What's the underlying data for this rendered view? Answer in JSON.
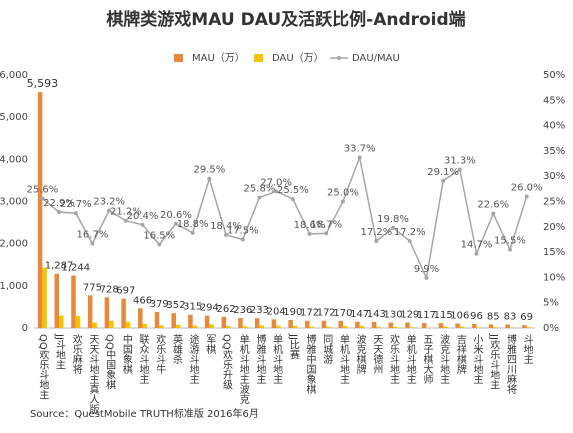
{
  "chart_data": {
    "type": "bar_line",
    "title": "棋牌类游戏MAU DAU及活跃比例-Android端",
    "source": "Source：QuestMobile TRUTH标准版 2016年6月",
    "categories": [
      "QQ欢乐斗地主",
      "JJ斗地主",
      "欢乐麻将",
      "天天斗地主真人版",
      "QQ中国象棋",
      "中国象棋",
      "联众斗地主",
      "欢乐斗牛",
      "英雄杀",
      "途游斗地主",
      "军棋",
      "QQ欢乐升级",
      "单机斗地主波克",
      "博雅斗地主",
      "单机斗地主",
      "JJ比赛",
      "博雅中国象棋",
      "同城游",
      "单机斗地主",
      "波克棋牌",
      "天天德州",
      "欢乐斗地主",
      "单机斗地主",
      "五子棋大师",
      "波克斗地主",
      "吉祥棋牌",
      "小米斗地主",
      "JJ欢乐斗地主",
      "博雅四川麻将",
      "斗地主"
    ],
    "series": [
      {
        "name": "MAU（万）",
        "color": "#e8883a",
        "values": [
          5593,
          1287,
          1244,
          775,
          728,
          697,
          466,
          379,
          352,
          315,
          294,
          262,
          236,
          233,
          204,
          190,
          172,
          172,
          170,
          147,
          143,
          130,
          129,
          117,
          115,
          106,
          96,
          85,
          83,
          69
        ],
        "value_labels": [
          "5,593",
          "1,287",
          "1,244",
          "775",
          "728",
          "697",
          "466",
          "379",
          "352",
          "315",
          "294",
          "262",
          "236",
          "233",
          "204",
          "190",
          "172",
          "172",
          "170",
          "147",
          "143",
          "130",
          "129",
          "117",
          "115",
          "106",
          "96",
          "85",
          "83",
          "69"
        ]
      },
      {
        "name": "DAU（万）",
        "color": "#f5c400",
        "values": [
          1432,
          295,
          282,
          129,
          169,
          148,
          95,
          63,
          73,
          59,
          87,
          48,
          41,
          60,
          55,
          48,
          32,
          32,
          43,
          50,
          25,
          26,
          22,
          12,
          33,
          33,
          14,
          19,
          13,
          18
        ]
      },
      {
        "name": "DAU/MAU",
        "color": "#a6a6a6",
        "axis": "y2",
        "values": [
          25.6,
          22.9,
          22.7,
          16.7,
          23.2,
          21.2,
          20.4,
          16.5,
          20.6,
          18.8,
          29.5,
          18.4,
          17.5,
          25.8,
          27.0,
          25.5,
          18.6,
          18.7,
          25.0,
          33.7,
          17.2,
          19.8,
          17.2,
          9.9,
          29.1,
          31.3,
          14.7,
          22.6,
          15.5,
          26.0
        ],
        "value_labels": [
          "25.6%",
          "22.9%",
          "22.7%",
          "16.7%",
          "23.2%",
          "21.2%",
          "20.4%",
          "16.5%",
          "20.6%",
          "18.8%",
          "29.5%",
          "18.4%",
          "17.5%",
          "25.8%",
          "27.0%",
          "25.5%",
          "18.6%",
          "18.7%",
          "25.0%",
          "33.7%",
          "17.2%",
          "19.8%",
          "17.2%",
          "9.9%",
          "29.1%",
          "31.3%",
          "14.7%",
          "22.6%",
          "15.5%",
          "26.0%"
        ]
      }
    ],
    "ylim": [
      0,
      6000
    ],
    "yticks": [
      0,
      {
        "value": 1000,
        "label": "1,000"
      },
      {
        "value": 2000,
        "label": "2,000"
      },
      {
        "value": 3000,
        "label": "3,000"
      },
      {
        "value": 4000,
        "label": "4,000"
      },
      {
        "value": 5000,
        "label": "5,000"
      },
      {
        "value": 6000,
        "label": "6,000"
      }
    ],
    "y2lim": [
      0,
      50
    ],
    "y2ticks": [
      {
        "value": 0,
        "label": "0%"
      },
      {
        "value": 5,
        "label": "5%"
      },
      {
        "value": 10,
        "label": "10%"
      },
      {
        "value": 15,
        "label": "15%"
      },
      {
        "value": 20,
        "label": "20%"
      },
      {
        "value": 25,
        "label": "25%"
      },
      {
        "value": 30,
        "label": "30%"
      },
      {
        "value": 35,
        "label": "35%"
      },
      {
        "value": 40,
        "label": "40%"
      },
      {
        "value": 45,
        "label": "45%"
      },
      {
        "value": 50,
        "label": "50%"
      }
    ],
    "legend": "top"
  }
}
